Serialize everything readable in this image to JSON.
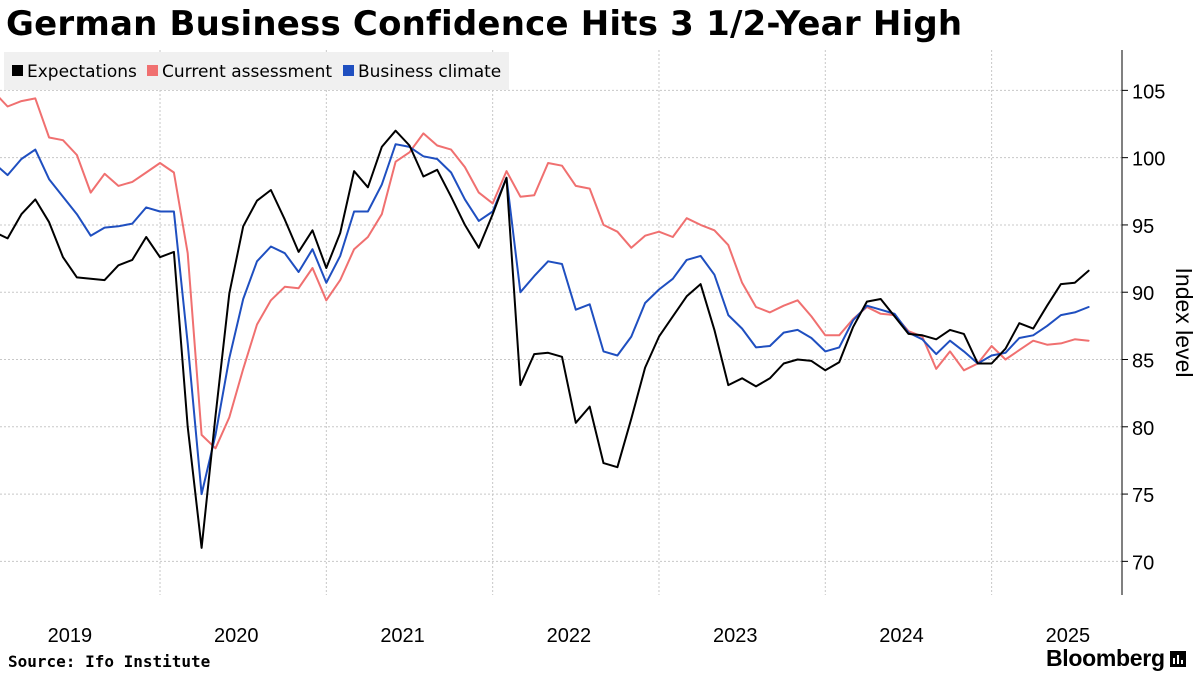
{
  "title": "German Business Confidence Hits 3 1/2-Year High",
  "source": "Source: Ifo Institute",
  "brand": "Bloomberg",
  "chart_data": {
    "type": "line",
    "title": "German Business Confidence Hits 3 1/2-Year High",
    "ylabel": "Index level",
    "xlabel": "",
    "ylim": [
      67.5,
      108
    ],
    "y_ticks": [
      70,
      75,
      80,
      85,
      90,
      95,
      100,
      105
    ],
    "x_ticks": [
      "2019",
      "2020",
      "2021",
      "2022",
      "2023",
      "2024",
      "2025"
    ],
    "x_start": "2019-01",
    "grid": true,
    "legend_position": "top-left",
    "series": [
      {
        "name": "Expectations",
        "color": "#000000",
        "values": [
          94.5,
          94.0,
          95.8,
          96.9,
          95.2,
          92.6,
          91.1,
          91.0,
          90.9,
          92.0,
          92.4,
          94.1,
          92.6,
          93.0,
          80.0,
          71.0,
          80.8,
          89.9,
          94.9,
          96.8,
          97.6,
          95.4,
          93.0,
          94.6,
          91.8,
          94.4,
          99.0,
          97.8,
          100.8,
          102.0,
          100.9,
          98.6,
          99.1,
          97.1,
          95.0,
          93.3,
          95.8,
          98.5,
          83.1,
          85.4,
          85.5,
          85.2,
          80.3,
          81.5,
          77.3,
          77.0,
          80.6,
          84.4,
          86.7,
          88.2,
          89.7,
          90.6,
          87.2,
          83.1,
          83.6,
          83.0,
          83.6,
          84.7,
          85.0,
          84.9,
          84.2,
          84.8,
          87.4,
          89.3,
          89.5,
          88.2,
          86.9,
          86.8,
          86.5,
          87.2,
          86.9,
          84.7,
          84.7,
          85.8,
          87.7,
          87.3,
          89.0,
          90.6,
          90.7,
          91.6
        ]
      },
      {
        "name": "Current assessment",
        "color": "#f07070",
        "values": [
          104.9,
          103.8,
          104.2,
          104.4,
          101.5,
          101.3,
          100.2,
          97.4,
          98.8,
          97.9,
          98.2,
          98.9,
          99.6,
          98.9,
          92.9,
          79.4,
          78.4,
          80.7,
          84.3,
          87.6,
          89.4,
          90.4,
          90.3,
          91.8,
          89.4,
          90.9,
          93.2,
          94.1,
          95.8,
          99.7,
          100.4,
          101.8,
          100.9,
          100.6,
          99.3,
          97.4,
          96.6,
          99.0,
          97.1,
          97.2,
          99.6,
          99.4,
          97.9,
          97.7,
          95.0,
          94.5,
          93.3,
          94.2,
          94.5,
          94.1,
          95.5,
          95.0,
          94.6,
          93.5,
          90.7,
          88.9,
          88.5,
          89.0,
          89.4,
          88.2,
          86.8,
          86.8,
          88.0,
          88.9,
          88.4,
          88.3,
          87.1,
          86.7,
          84.3,
          85.6,
          84.2,
          84.7,
          86.0,
          85.0,
          85.7,
          86.4,
          86.1,
          86.2,
          86.5,
          86.4
        ]
      },
      {
        "name": "Business climate",
        "color": "#1f4fc0",
        "values": [
          99.6,
          98.7,
          99.9,
          100.6,
          98.4,
          97.1,
          95.8,
          94.2,
          94.8,
          94.9,
          95.1,
          96.3,
          96.0,
          96.0,
          86.2,
          75.0,
          79.4,
          85.1,
          89.5,
          92.3,
          93.4,
          92.9,
          91.5,
          93.2,
          90.7,
          92.7,
          96.0,
          96.0,
          98.0,
          101.0,
          100.8,
          100.1,
          99.9,
          98.9,
          96.9,
          95.3,
          96.0,
          98.5,
          90.0,
          91.2,
          92.3,
          92.1,
          88.7,
          89.1,
          85.6,
          85.3,
          86.7,
          89.2,
          90.2,
          91.0,
          92.4,
          92.7,
          91.3,
          88.3,
          87.3,
          85.9,
          86.0,
          87.0,
          87.2,
          86.6,
          85.6,
          85.9,
          87.9,
          89.0,
          88.7,
          88.4,
          87.0,
          86.5,
          85.4,
          86.4,
          85.6,
          84.7,
          85.3,
          85.5,
          86.6,
          86.8,
          87.5,
          88.3,
          88.5,
          88.9
        ]
      }
    ]
  }
}
